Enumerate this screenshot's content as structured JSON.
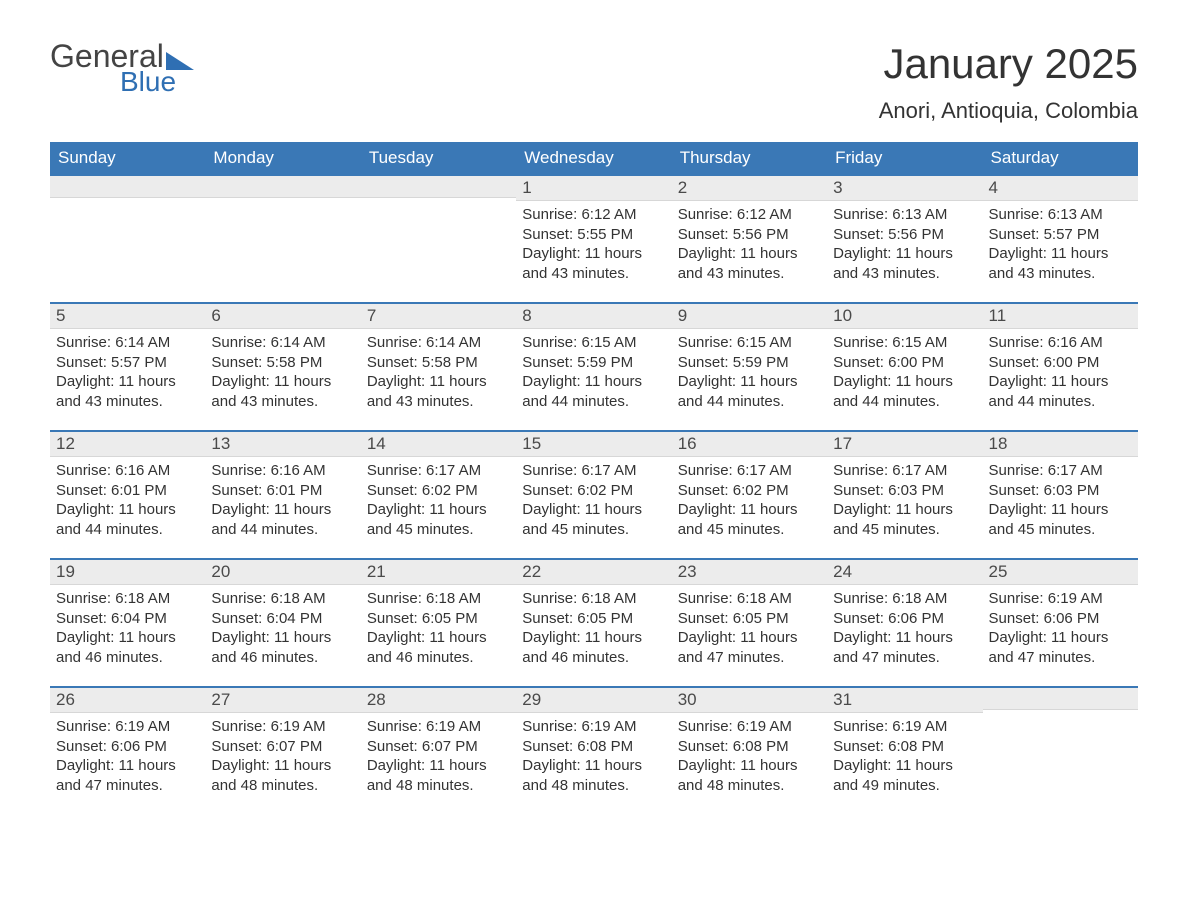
{
  "brand": {
    "general": "General",
    "blue": "Blue"
  },
  "title": "January 2025",
  "location": "Anori, Antioquia, Colombia",
  "colors": {
    "header_bg": "#3a78b6",
    "header_fg": "#ffffff",
    "daynum_bg": "#ececec",
    "row_border": "#3a78b6",
    "text": "#333333",
    "background": "#ffffff"
  },
  "fonts": {
    "title_pt": 42,
    "location_pt": 22,
    "daynum_pt": 17,
    "body_pt": 15
  },
  "weekdays": [
    "Sunday",
    "Monday",
    "Tuesday",
    "Wednesday",
    "Thursday",
    "Friday",
    "Saturday"
  ],
  "weeks": [
    [
      null,
      null,
      null,
      {
        "day": "1",
        "sunrise": "Sunrise: 6:12 AM",
        "sunset": "Sunset: 5:55 PM",
        "daylight": "Daylight: 11 hours and 43 minutes."
      },
      {
        "day": "2",
        "sunrise": "Sunrise: 6:12 AM",
        "sunset": "Sunset: 5:56 PM",
        "daylight": "Daylight: 11 hours and 43 minutes."
      },
      {
        "day": "3",
        "sunrise": "Sunrise: 6:13 AM",
        "sunset": "Sunset: 5:56 PM",
        "daylight": "Daylight: 11 hours and 43 minutes."
      },
      {
        "day": "4",
        "sunrise": "Sunrise: 6:13 AM",
        "sunset": "Sunset: 5:57 PM",
        "daylight": "Daylight: 11 hours and 43 minutes."
      }
    ],
    [
      {
        "day": "5",
        "sunrise": "Sunrise: 6:14 AM",
        "sunset": "Sunset: 5:57 PM",
        "daylight": "Daylight: 11 hours and 43 minutes."
      },
      {
        "day": "6",
        "sunrise": "Sunrise: 6:14 AM",
        "sunset": "Sunset: 5:58 PM",
        "daylight": "Daylight: 11 hours and 43 minutes."
      },
      {
        "day": "7",
        "sunrise": "Sunrise: 6:14 AM",
        "sunset": "Sunset: 5:58 PM",
        "daylight": "Daylight: 11 hours and 43 minutes."
      },
      {
        "day": "8",
        "sunrise": "Sunrise: 6:15 AM",
        "sunset": "Sunset: 5:59 PM",
        "daylight": "Daylight: 11 hours and 44 minutes."
      },
      {
        "day": "9",
        "sunrise": "Sunrise: 6:15 AM",
        "sunset": "Sunset: 5:59 PM",
        "daylight": "Daylight: 11 hours and 44 minutes."
      },
      {
        "day": "10",
        "sunrise": "Sunrise: 6:15 AM",
        "sunset": "Sunset: 6:00 PM",
        "daylight": "Daylight: 11 hours and 44 minutes."
      },
      {
        "day": "11",
        "sunrise": "Sunrise: 6:16 AM",
        "sunset": "Sunset: 6:00 PM",
        "daylight": "Daylight: 11 hours and 44 minutes."
      }
    ],
    [
      {
        "day": "12",
        "sunrise": "Sunrise: 6:16 AM",
        "sunset": "Sunset: 6:01 PM",
        "daylight": "Daylight: 11 hours and 44 minutes."
      },
      {
        "day": "13",
        "sunrise": "Sunrise: 6:16 AM",
        "sunset": "Sunset: 6:01 PM",
        "daylight": "Daylight: 11 hours and 44 minutes."
      },
      {
        "day": "14",
        "sunrise": "Sunrise: 6:17 AM",
        "sunset": "Sunset: 6:02 PM",
        "daylight": "Daylight: 11 hours and 45 minutes."
      },
      {
        "day": "15",
        "sunrise": "Sunrise: 6:17 AM",
        "sunset": "Sunset: 6:02 PM",
        "daylight": "Daylight: 11 hours and 45 minutes."
      },
      {
        "day": "16",
        "sunrise": "Sunrise: 6:17 AM",
        "sunset": "Sunset: 6:02 PM",
        "daylight": "Daylight: 11 hours and 45 minutes."
      },
      {
        "day": "17",
        "sunrise": "Sunrise: 6:17 AM",
        "sunset": "Sunset: 6:03 PM",
        "daylight": "Daylight: 11 hours and 45 minutes."
      },
      {
        "day": "18",
        "sunrise": "Sunrise: 6:17 AM",
        "sunset": "Sunset: 6:03 PM",
        "daylight": "Daylight: 11 hours and 45 minutes."
      }
    ],
    [
      {
        "day": "19",
        "sunrise": "Sunrise: 6:18 AM",
        "sunset": "Sunset: 6:04 PM",
        "daylight": "Daylight: 11 hours and 46 minutes."
      },
      {
        "day": "20",
        "sunrise": "Sunrise: 6:18 AM",
        "sunset": "Sunset: 6:04 PM",
        "daylight": "Daylight: 11 hours and 46 minutes."
      },
      {
        "day": "21",
        "sunrise": "Sunrise: 6:18 AM",
        "sunset": "Sunset: 6:05 PM",
        "daylight": "Daylight: 11 hours and 46 minutes."
      },
      {
        "day": "22",
        "sunrise": "Sunrise: 6:18 AM",
        "sunset": "Sunset: 6:05 PM",
        "daylight": "Daylight: 11 hours and 46 minutes."
      },
      {
        "day": "23",
        "sunrise": "Sunrise: 6:18 AM",
        "sunset": "Sunset: 6:05 PM",
        "daylight": "Daylight: 11 hours and 47 minutes."
      },
      {
        "day": "24",
        "sunrise": "Sunrise: 6:18 AM",
        "sunset": "Sunset: 6:06 PM",
        "daylight": "Daylight: 11 hours and 47 minutes."
      },
      {
        "day": "25",
        "sunrise": "Sunrise: 6:19 AM",
        "sunset": "Sunset: 6:06 PM",
        "daylight": "Daylight: 11 hours and 47 minutes."
      }
    ],
    [
      {
        "day": "26",
        "sunrise": "Sunrise: 6:19 AM",
        "sunset": "Sunset: 6:06 PM",
        "daylight": "Daylight: 11 hours and 47 minutes."
      },
      {
        "day": "27",
        "sunrise": "Sunrise: 6:19 AM",
        "sunset": "Sunset: 6:07 PM",
        "daylight": "Daylight: 11 hours and 48 minutes."
      },
      {
        "day": "28",
        "sunrise": "Sunrise: 6:19 AM",
        "sunset": "Sunset: 6:07 PM",
        "daylight": "Daylight: 11 hours and 48 minutes."
      },
      {
        "day": "29",
        "sunrise": "Sunrise: 6:19 AM",
        "sunset": "Sunset: 6:08 PM",
        "daylight": "Daylight: 11 hours and 48 minutes."
      },
      {
        "day": "30",
        "sunrise": "Sunrise: 6:19 AM",
        "sunset": "Sunset: 6:08 PM",
        "daylight": "Daylight: 11 hours and 48 minutes."
      },
      {
        "day": "31",
        "sunrise": "Sunrise: 6:19 AM",
        "sunset": "Sunset: 6:08 PM",
        "daylight": "Daylight: 11 hours and 49 minutes."
      },
      null
    ]
  ]
}
